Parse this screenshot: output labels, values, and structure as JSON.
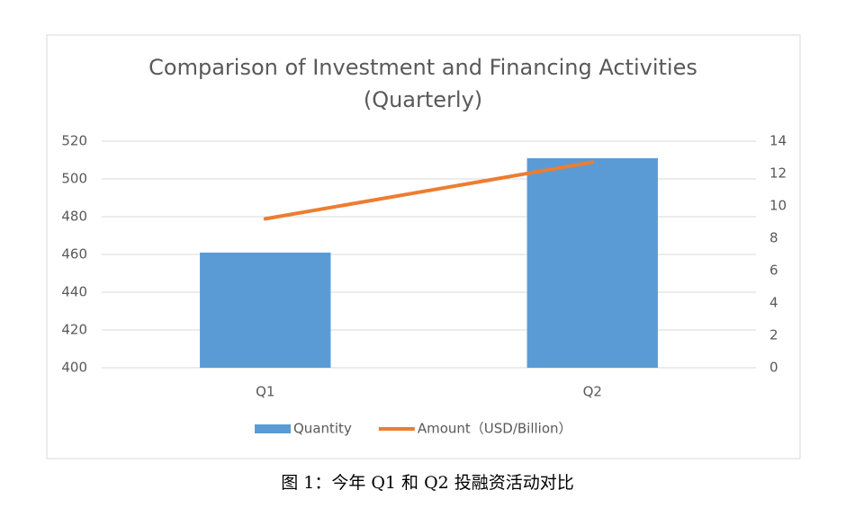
{
  "chart_data": {
    "type": "bar_line",
    "title": [
      "Comparison of Investment and Financing Activities",
      "(Quarterly)"
    ],
    "categories": [
      "Q1",
      "Q2"
    ],
    "series": [
      {
        "name": "Quantity",
        "type": "bar",
        "color": "#5b9bd5",
        "values": [
          461,
          511
        ]
      },
      {
        "name": "Amount（USD/Billion）",
        "type": "line",
        "color": "#ed7d31",
        "axis": "y2",
        "values": [
          9.2,
          12.7
        ]
      }
    ],
    "ylim": [
      400,
      520
    ],
    "yticks": [
      400,
      420,
      440,
      460,
      480,
      500,
      520
    ],
    "y2lim": [
      0,
      14
    ],
    "y2ticks": [
      0,
      2,
      4,
      6,
      8,
      10,
      12,
      14
    ],
    "grid": true,
    "legend": "bottom"
  },
  "caption": "图 1：今年 Q1 和 Q2 投融资活动对比"
}
